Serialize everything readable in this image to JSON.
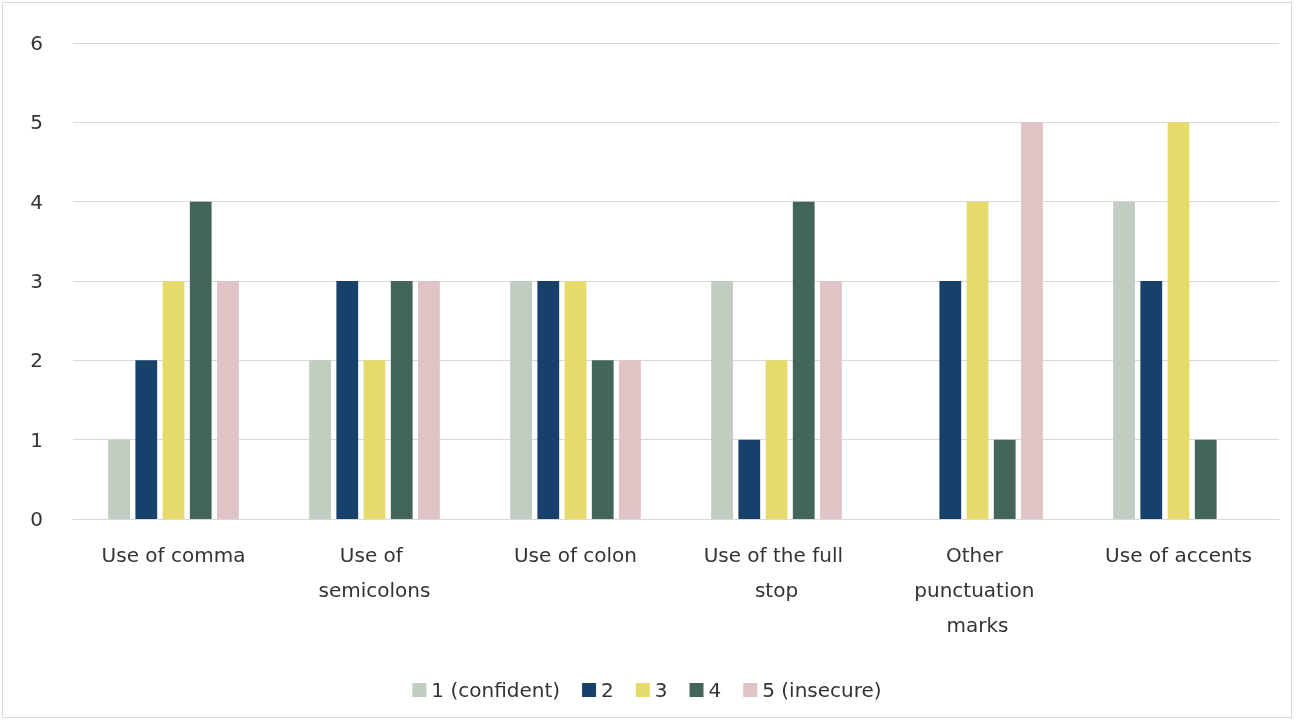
{
  "chart_data": {
    "type": "bar",
    "categories": [
      "Use of comma",
      "Use of semicolons",
      "Use of colon",
      "Use of the full stop",
      "Other punctuation marks",
      "Use of accents"
    ],
    "series": [
      {
        "name": "1 (confident)",
        "color": "#c0cdc0",
        "values": [
          1,
          2,
          3,
          3,
          0,
          4
        ]
      },
      {
        "name": "2",
        "color": "#17406a",
        "values": [
          2,
          3,
          3,
          1,
          3,
          3
        ]
      },
      {
        "name": "3",
        "color": "#e5da6a",
        "values": [
          3,
          2,
          3,
          2,
          4,
          5
        ]
      },
      {
        "name": "4",
        "color": "#44665a",
        "values": [
          4,
          3,
          2,
          4,
          1,
          1
        ]
      },
      {
        "name": "5 (insecure)",
        "color": "#e0c3c5",
        "values": [
          3,
          3,
          2,
          3,
          5,
          0
        ]
      }
    ],
    "ylim": [
      0,
      6
    ],
    "yticks": [
      0,
      1,
      2,
      3,
      4,
      5,
      6
    ],
    "grid": "y",
    "legend": "bottom"
  }
}
